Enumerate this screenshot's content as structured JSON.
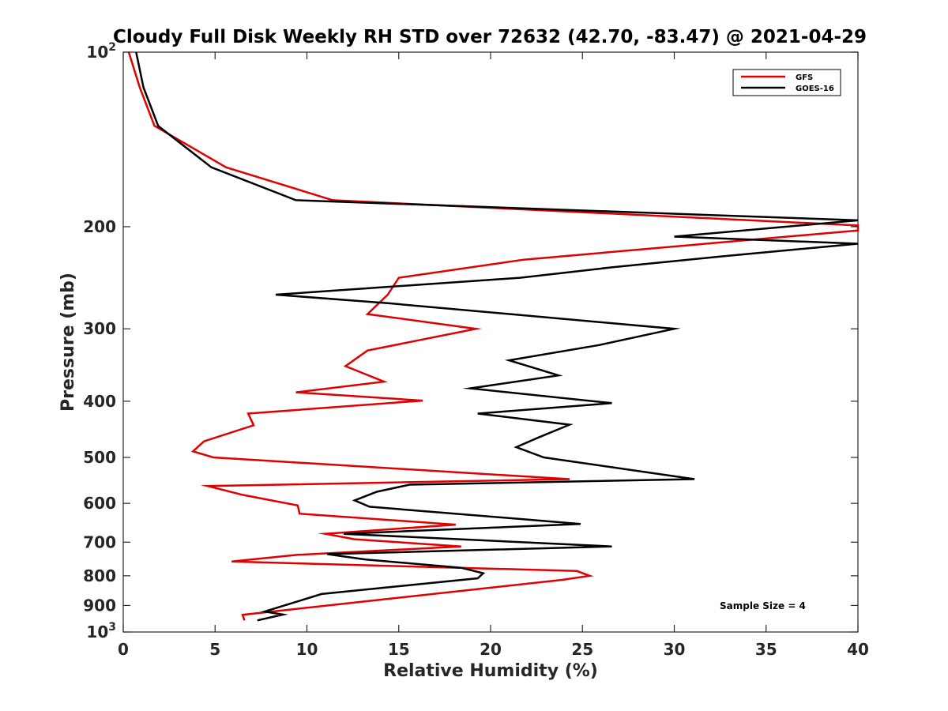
{
  "chart_data": {
    "type": "line",
    "title": "Cloudy Full Disk Weekly RH STD over 72632 (42.70, -83.47) @ 2021-04-29",
    "xlabel": "Relative Humidity (%)",
    "ylabel": "Pressure (mb)",
    "xlim": [
      0,
      40
    ],
    "ylim": [
      100,
      1000
    ],
    "y_scale": "log",
    "y_reversed": true,
    "x_ticks": [
      "0",
      "5",
      "10",
      "15",
      "20",
      "25",
      "30",
      "35",
      "40"
    ],
    "y_ticks": [
      {
        "value": 100,
        "label": "10",
        "sup": "2"
      },
      {
        "value": 200,
        "label": "200"
      },
      {
        "value": 300,
        "label": "300"
      },
      {
        "value": 400,
        "label": "400"
      },
      {
        "value": 500,
        "label": "500"
      },
      {
        "value": 600,
        "label": "600"
      },
      {
        "value": 700,
        "label": "700"
      },
      {
        "value": 800,
        "label": "800"
      },
      {
        "value": 900,
        "label": "900"
      },
      {
        "value": 1000,
        "label": "10",
        "sup": "3"
      }
    ],
    "legend_position": "top-right",
    "annotation": "Sample Size = 4",
    "series": [
      {
        "name": "GFS",
        "color": "#e00000",
        "points": [
          [
            0.3,
            100
          ],
          [
            0.9,
            115
          ],
          [
            1.7,
            134
          ],
          [
            5.6,
            158
          ],
          [
            11.4,
            180
          ],
          [
            40,
            199
          ],
          [
            40,
            203
          ],
          [
            21.8,
            228
          ],
          [
            15.0,
            245
          ],
          [
            14.4,
            262
          ],
          [
            13.3,
            283
          ],
          [
            19.2,
            300
          ],
          [
            13.3,
            327
          ],
          [
            12.1,
            348
          ],
          [
            14.2,
            370
          ],
          [
            9.4,
            386
          ],
          [
            16.3,
            399
          ],
          [
            6.8,
            420
          ],
          [
            7.1,
            440
          ],
          [
            4.4,
            469
          ],
          [
            3.8,
            488
          ],
          [
            4.9,
            500
          ],
          [
            24.3,
            545
          ],
          [
            4.6,
            560
          ],
          [
            6.5,
            580
          ],
          [
            9.5,
            605
          ],
          [
            9.6,
            625
          ],
          [
            18.1,
            653
          ],
          [
            11.0,
            677
          ],
          [
            12.6,
            692
          ],
          [
            18.4,
            712
          ],
          [
            9.5,
            736
          ],
          [
            5.9,
            756
          ],
          [
            24.7,
            785
          ],
          [
            25.4,
            800
          ],
          [
            23.9,
            813
          ],
          [
            6.5,
            934
          ],
          [
            6.6,
            955
          ]
        ]
      },
      {
        "name": "GOES-16",
        "color": "#000000",
        "points": [
          [
            0.7,
            100
          ],
          [
            1.1,
            115
          ],
          [
            1.9,
            134
          ],
          [
            4.8,
            158
          ],
          [
            9.4,
            180
          ],
          [
            40,
            195
          ],
          [
            30,
            208
          ],
          [
            40,
            214
          ],
          [
            32.6,
            225
          ],
          [
            26.6,
            235
          ],
          [
            21.6,
            245
          ],
          [
            8.3,
            262
          ],
          [
            14.4,
            271
          ],
          [
            30,
            300
          ],
          [
            25.9,
            320
          ],
          [
            21.0,
            340
          ],
          [
            23.7,
            361
          ],
          [
            18.9,
            380
          ],
          [
            26.6,
            403
          ],
          [
            19.3,
            420
          ],
          [
            24.3,
            439
          ],
          [
            22.6,
            462
          ],
          [
            21.4,
            480
          ],
          [
            22.9,
            500
          ],
          [
            31.1,
            545
          ],
          [
            15.6,
            557
          ],
          [
            13.8,
            573
          ],
          [
            12.6,
            593
          ],
          [
            13.4,
            608
          ],
          [
            24.9,
            651
          ],
          [
            12.0,
            677
          ],
          [
            26.6,
            712
          ],
          [
            11.1,
            734
          ],
          [
            13.2,
            750
          ],
          [
            18.4,
            775
          ],
          [
            19.6,
            792
          ],
          [
            19.3,
            808
          ],
          [
            10.8,
            860
          ],
          [
            7.7,
            922
          ],
          [
            8.7,
            933
          ],
          [
            7.3,
            955
          ]
        ]
      }
    ]
  }
}
